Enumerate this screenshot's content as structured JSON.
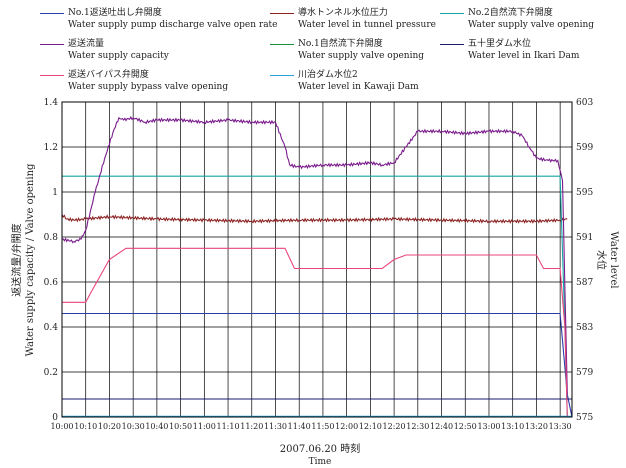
{
  "legend": {
    "items": [
      {
        "jp": "No.1返送吐出し弁開度",
        "en": "Water supply pump discharge valve open rate",
        "color": "#2b3ea8"
      },
      {
        "jp": "導水トンネル水位圧力",
        "en": "Water level in tunnel pressure",
        "color": "#8b2323"
      },
      {
        "jp": "No.2自然流下弁開度",
        "en": "Water supply valve opening",
        "color": "#16a3a3"
      },
      {
        "jp": "返送流量",
        "en": "Water supply capacity",
        "color": "#7a1c8c"
      },
      {
        "jp": "No.1自然流下弁開度",
        "en": "Water supply valve opening",
        "color": "#1a8f3a"
      },
      {
        "jp": "五十里ダム水位",
        "en": "Water level in Ikari Dam",
        "color": "#1a1a6e"
      },
      {
        "jp": "返送バイパス弁開度",
        "en": "Water supply bypass valve opening",
        "color": "#e8457a"
      },
      {
        "jp": "川治ダム水位2",
        "en": "Water level in Kawaji Dam",
        "color": "#2aa0d8"
      }
    ]
  },
  "chart_data": {
    "type": "line",
    "xlabel": "2007.06.20 時刻",
    "xlabel_en": "Time",
    "ylabel_left_jp": "返送流量/弁開度",
    "ylabel_left_en": "Water supply capacity / Valve opening",
    "ylabel_right_jp": "水位",
    "ylabel_right_en": "Water level",
    "x_ticks": [
      "10:00",
      "10:10",
      "10:20",
      "10:30",
      "10:40",
      "10:50",
      "11:00",
      "11:10",
      "11:20",
      "11:30",
      "11:40",
      "11:50",
      "12:00",
      "12:10",
      "12:20",
      "12:30",
      "12:40",
      "12:50",
      "13:00",
      "13:10",
      "13:20",
      "13:30"
    ],
    "xlim_minutes": [
      0,
      215
    ],
    "ylim_left": [
      0,
      1.4
    ],
    "yticks_left": [
      "0",
      "0.2",
      "0.4",
      "0.6",
      "0.8",
      "1",
      "1.2",
      "1.4"
    ],
    "ylim_right": [
      575,
      603
    ],
    "yticks_right": [
      "575",
      "579",
      "583",
      "587",
      "591",
      "595",
      "599",
      "603"
    ],
    "grid": true,
    "series": [
      {
        "name": "No.1返送吐出し弁開度",
        "color": "#2b3ea8",
        "axis": "left",
        "x": [
          0,
          210,
          213,
          215
        ],
        "y": [
          0.46,
          0.46,
          0.1,
          0.0
        ]
      },
      {
        "name": "導水トンネル水位圧力",
        "color": "#8b2323",
        "axis": "left",
        "x": [
          0,
          2,
          5,
          10,
          20,
          30,
          40,
          60,
          80,
          100,
          120,
          140,
          160,
          180,
          200,
          210,
          213
        ],
        "y": [
          0.9,
          0.88,
          0.875,
          0.88,
          0.89,
          0.885,
          0.88,
          0.875,
          0.87,
          0.875,
          0.875,
          0.88,
          0.875,
          0.87,
          0.87,
          0.875,
          0.88
        ]
      },
      {
        "name": "No.2自然流下弁開度",
        "color": "#16a3a3",
        "axis": "left",
        "x": [
          0,
          210,
          212,
          213
        ],
        "y": [
          1.07,
          1.07,
          0.4,
          0.0
        ]
      },
      {
        "name": "返送流量",
        "color": "#7a1c8c",
        "axis": "left",
        "x": [
          0,
          5,
          8,
          10,
          14,
          18,
          22,
          24,
          26,
          30,
          35,
          40,
          50,
          60,
          70,
          80,
          90,
          94,
          96,
          100,
          110,
          120,
          130,
          135,
          140,
          145,
          150,
          160,
          170,
          180,
          190,
          194,
          197,
          200,
          205,
          209,
          211,
          213
        ],
        "y": [
          0.79,
          0.78,
          0.79,
          0.83,
          1.0,
          1.15,
          1.28,
          1.33,
          1.32,
          1.33,
          1.31,
          1.32,
          1.32,
          1.31,
          1.32,
          1.31,
          1.31,
          1.2,
          1.12,
          1.11,
          1.12,
          1.12,
          1.13,
          1.12,
          1.13,
          1.2,
          1.27,
          1.27,
          1.26,
          1.27,
          1.27,
          1.25,
          1.2,
          1.15,
          1.14,
          1.14,
          1.05,
          0.1
        ]
      },
      {
        "name": "No.1自然流下弁開度",
        "color": "#1a8f3a",
        "axis": "left",
        "x": [
          0,
          215
        ],
        "y": [
          0.0,
          0.0
        ]
      },
      {
        "name": "五十里ダム水位",
        "color": "#1a1a6e",
        "axis": "left",
        "x": [
          0,
          215
        ],
        "y": [
          0.08,
          0.08
        ]
      },
      {
        "name": "返送バイパス弁開度",
        "color": "#e8457a",
        "axis": "left",
        "x": [
          0,
          10,
          12,
          20,
          27,
          30,
          40,
          50,
          60,
          80,
          94,
          98,
          100,
          130,
          135,
          140,
          145,
          150,
          200,
          203,
          205,
          210,
          212,
          213
        ],
        "y": [
          0.51,
          0.51,
          0.55,
          0.7,
          0.75,
          0.75,
          0.75,
          0.75,
          0.75,
          0.75,
          0.75,
          0.66,
          0.66,
          0.66,
          0.66,
          0.7,
          0.72,
          0.72,
          0.72,
          0.66,
          0.66,
          0.66,
          0.4,
          0.0
        ]
      },
      {
        "name": "川治ダム水位2",
        "color": "#2aa0d8",
        "axis": "left",
        "x": [
          0,
          215
        ],
        "y": [
          0.003,
          0.003
        ]
      }
    ]
  }
}
